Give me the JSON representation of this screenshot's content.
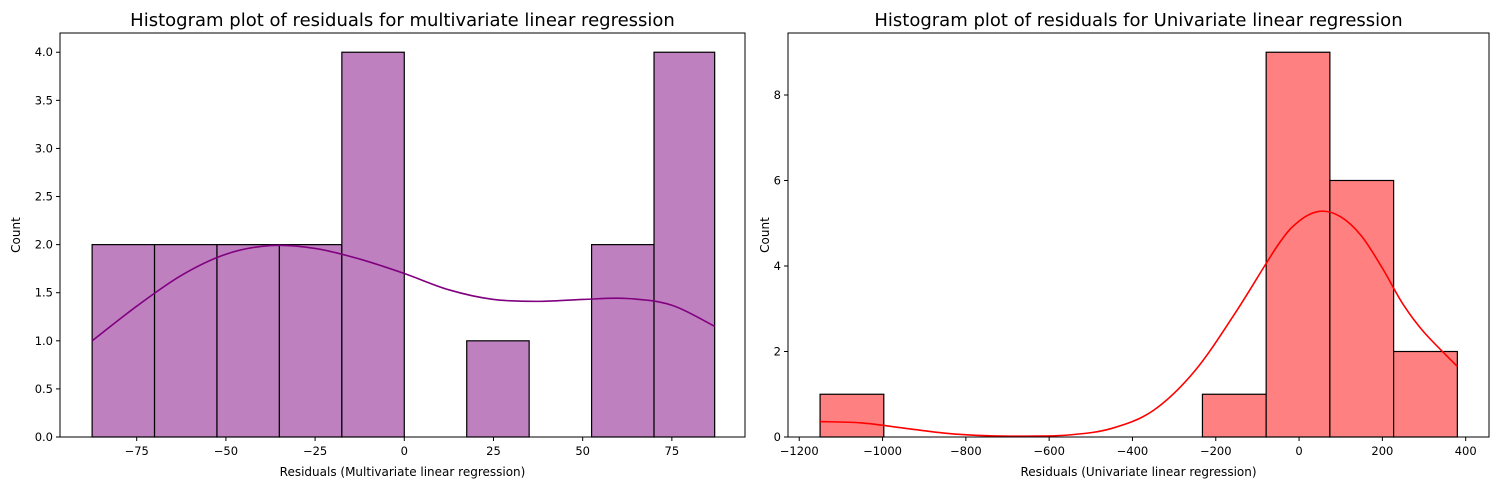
{
  "chart_data": [
    {
      "type": "histogram",
      "title": "Histogram plot of residuals for multivariate linear regression",
      "xlabel": "Residuals (Multivariate linear regression)",
      "ylabel": "Count",
      "xlim": [
        -96.5,
        95.5
      ],
      "ylim": [
        0,
        4.2
      ],
      "xticks": [
        -75,
        -50,
        -25,
        0,
        25,
        50,
        75
      ],
      "xtick_labels": [
        "−75",
        "−50",
        "−25",
        "0",
        "25",
        "50",
        "75"
      ],
      "yticks": [
        0,
        0.5,
        1.0,
        1.5,
        2.0,
        2.5,
        3.0,
        3.5,
        4.0
      ],
      "ytick_labels": [
        "0.0",
        "0.5",
        "1.0",
        "1.5",
        "2.0",
        "2.5",
        "3.0",
        "3.5",
        "4.0"
      ],
      "bins": [
        {
          "x0": -87.5,
          "x1": -70.0,
          "count": 2
        },
        {
          "x0": -70.0,
          "x1": -52.5,
          "count": 2
        },
        {
          "x0": -52.5,
          "x1": -35.0,
          "count": 2
        },
        {
          "x0": -35.0,
          "x1": -17.5,
          "count": 2
        },
        {
          "x0": -17.5,
          "x1": 0.0,
          "count": 4
        },
        {
          "x0": 0.0,
          "x1": 17.5,
          "count": 0
        },
        {
          "x0": 17.5,
          "x1": 35.0,
          "count": 1
        },
        {
          "x0": 35.0,
          "x1": 52.5,
          "count": 0
        },
        {
          "x0": 52.5,
          "x1": 70.0,
          "count": 2
        },
        {
          "x0": 70.0,
          "x1": 87.0,
          "count": 4
        }
      ],
      "kde": {
        "x": [
          -87.5,
          -75,
          -62.5,
          -50,
          -37.5,
          -25,
          -12.5,
          0,
          12.5,
          25,
          37.5,
          50,
          62.5,
          75,
          87
        ],
        "y": [
          1.0,
          1.36,
          1.68,
          1.9,
          1.99,
          1.96,
          1.85,
          1.7,
          1.53,
          1.43,
          1.41,
          1.43,
          1.44,
          1.37,
          1.15
        ]
      },
      "fill_color": "#bf80bf",
      "line_color": "#800080",
      "edge_color": "#000000"
    },
    {
      "type": "histogram",
      "title": "Histogram plot of residuals for Univariate linear regression",
      "xlabel": "Residuals (Univariate linear regression)",
      "ylabel": "Count",
      "xlim": [
        -1227,
        456
      ],
      "ylim": [
        0,
        9.45
      ],
      "xticks": [
        -1200,
        -1000,
        -800,
        -600,
        -400,
        -200,
        0,
        200,
        400
      ],
      "xtick_labels": [
        "−1200",
        "−1000",
        "−800",
        "−600",
        "−400",
        "−200",
        "0",
        "200",
        "400"
      ],
      "yticks": [
        0,
        2,
        4,
        6,
        8
      ],
      "ytick_labels": [
        "0",
        "2",
        "4",
        "6",
        "8"
      ],
      "bins": [
        {
          "x0": -1150,
          "x1": -997,
          "count": 1
        },
        {
          "x0": -997,
          "x1": -844,
          "count": 0
        },
        {
          "x0": -844,
          "x1": -691,
          "count": 0
        },
        {
          "x0": -691,
          "x1": -538,
          "count": 0
        },
        {
          "x0": -538,
          "x1": -385,
          "count": 0
        },
        {
          "x0": -385,
          "x1": -232,
          "count": 0
        },
        {
          "x0": -232,
          "x1": -79,
          "count": 1
        },
        {
          "x0": -79,
          "x1": 74,
          "count": 9
        },
        {
          "x0": 74,
          "x1": 227,
          "count": 6
        },
        {
          "x0": 227,
          "x1": 380,
          "count": 2
        }
      ],
      "kde": {
        "x": [
          -1150,
          -1050,
          -950,
          -850,
          -750,
          -650,
          -550,
          -450,
          -350,
          -250,
          -150,
          -50,
          0,
          50,
          100,
          150,
          200,
          250,
          300,
          380
        ],
        "y": [
          0.36,
          0.33,
          0.21,
          0.09,
          0.03,
          0.02,
          0.05,
          0.2,
          0.62,
          1.55,
          2.95,
          4.5,
          5.05,
          5.28,
          5.15,
          4.7,
          3.95,
          3.1,
          2.45,
          1.65
        ]
      },
      "fill_color": "#ff8080",
      "line_color": "#ff0000",
      "edge_color": "#000000"
    }
  ]
}
